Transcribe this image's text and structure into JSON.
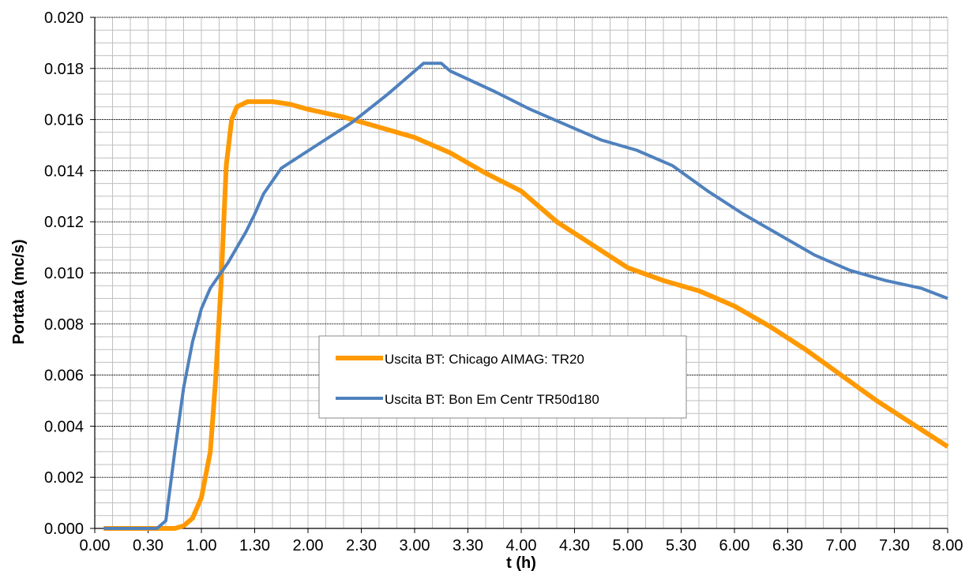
{
  "chart_data": {
    "type": "line",
    "title": "",
    "xlabel": "t (h)",
    "ylabel": "Portata (mc/s)",
    "x_tick_labels": [
      "0.00",
      "0.30",
      "1.00",
      "1.30",
      "2.00",
      "2.30",
      "3.00",
      "3.30",
      "4.00",
      "4.30",
      "5.00",
      "5.30",
      "6.00",
      "6.30",
      "7.00",
      "7.30",
      "8.00"
    ],
    "x_minutes_per_tick": 30,
    "xlim_minutes": [
      0,
      480
    ],
    "ylim": [
      0,
      0.02
    ],
    "y_ticks": [
      "0.000",
      "0.002",
      "0.004",
      "0.006",
      "0.008",
      "0.010",
      "0.012",
      "0.014",
      "0.016",
      "0.018",
      "0.020"
    ],
    "grid": true,
    "legend_position": "center",
    "series": [
      {
        "name": "Uscita BT: Chicago AIMAG: TR20",
        "color": "#FF9900",
        "x_minutes": [
          5,
          35,
          45,
          50,
          55,
          60,
          65,
          68,
          71,
          74,
          77,
          80,
          83,
          86,
          90,
          95,
          100,
          110,
          120,
          140,
          160,
          180,
          200,
          220,
          240,
          260,
          280,
          300,
          320,
          340,
          360,
          380,
          400,
          420,
          440,
          460,
          480
        ],
        "values": [
          0,
          0,
          0,
          0.0001,
          0.0004,
          0.0012,
          0.003,
          0.0058,
          0.0095,
          0.0142,
          0.016,
          0.0165,
          0.0166,
          0.0167,
          0.0167,
          0.0167,
          0.0167,
          0.0166,
          0.0164,
          0.0161,
          0.0157,
          0.0153,
          0.0147,
          0.0139,
          0.0132,
          0.012,
          0.0111,
          0.0102,
          0.0097,
          0.0093,
          0.0087,
          0.0079,
          0.007,
          0.006,
          0.005,
          0.0041,
          0.0032
        ]
      },
      {
        "name": "Uscita BT: Bon Em Centr TR50d180",
        "color": "#4F81BD",
        "x_minutes": [
          5,
          35,
          40,
          45,
          50,
          55,
          60,
          65,
          70,
          75,
          80,
          85,
          90,
          95,
          105,
          125,
          145,
          165,
          185,
          195,
          200,
          225,
          245,
          265,
          285,
          305,
          325,
          345,
          365,
          385,
          405,
          425,
          445,
          465,
          480
        ],
        "values": [
          0,
          0,
          0.0003,
          0.003,
          0.0055,
          0.0073,
          0.0086,
          0.0094,
          0.0099,
          0.0104,
          0.011,
          0.0116,
          0.0123,
          0.0131,
          0.0141,
          0.015,
          0.0159,
          0.017,
          0.0182,
          0.0182,
          0.0179,
          0.0171,
          0.0164,
          0.0158,
          0.0152,
          0.0148,
          0.0142,
          0.0132,
          0.0123,
          0.0115,
          0.0107,
          0.0101,
          0.0097,
          0.0094,
          0.009
        ]
      }
    ]
  }
}
